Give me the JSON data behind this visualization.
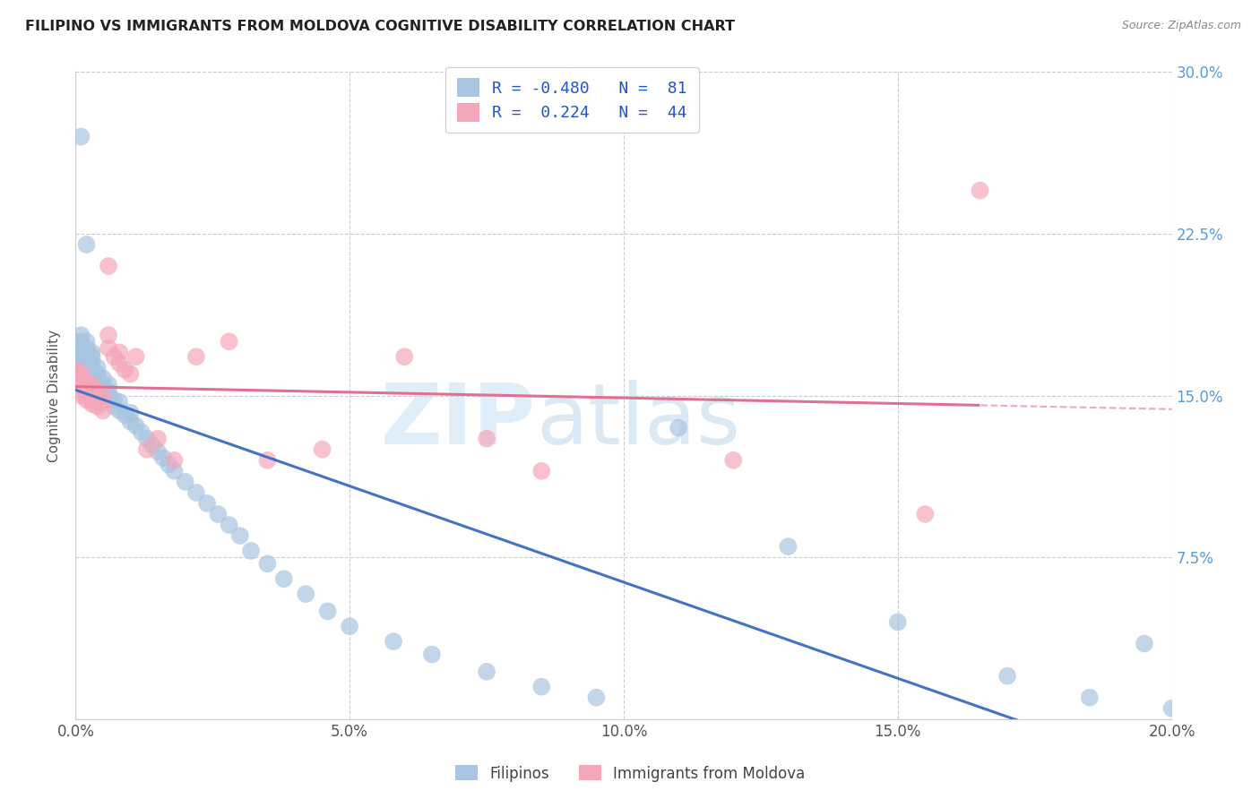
{
  "title": "FILIPINO VS IMMIGRANTS FROM MOLDOVA COGNITIVE DISABILITY CORRELATION CHART",
  "source": "Source: ZipAtlas.com",
  "ylabel": "Cognitive Disability",
  "xlim": [
    0,
    0.2
  ],
  "ylim": [
    0,
    0.3
  ],
  "xtick_vals": [
    0.0,
    0.05,
    0.1,
    0.15,
    0.2
  ],
  "ytick_vals": [
    0.0,
    0.075,
    0.15,
    0.225,
    0.3
  ],
  "ytick_labels": [
    "",
    "7.5%",
    "15.0%",
    "22.5%",
    "30.0%"
  ],
  "xtick_labels": [
    "0.0%",
    "5.0%",
    "10.0%",
    "15.0%",
    "20.0%"
  ],
  "filipino_R": -0.48,
  "filipino_N": 81,
  "moldova_R": 0.224,
  "moldova_N": 44,
  "blue_color": "#a8c4e0",
  "blue_line_color": "#4472c4",
  "pink_color": "#f4a7b9",
  "pink_line_color": "#e07090",
  "legend_labels": [
    "Filipinos",
    "Immigrants from Moldova"
  ],
  "watermark_zip": "ZIP",
  "watermark_atlas": "atlas",
  "filipino_x": [
    0.0,
    0.0,
    0.0,
    0.0,
    0.001,
    0.001,
    0.001,
    0.001,
    0.001,
    0.001,
    0.001,
    0.001,
    0.001,
    0.002,
    0.002,
    0.002,
    0.002,
    0.002,
    0.002,
    0.002,
    0.002,
    0.002,
    0.003,
    0.003,
    0.003,
    0.003,
    0.003,
    0.003,
    0.003,
    0.004,
    0.004,
    0.004,
    0.004,
    0.004,
    0.005,
    0.005,
    0.005,
    0.005,
    0.006,
    0.006,
    0.006,
    0.006,
    0.007,
    0.007,
    0.008,
    0.008,
    0.009,
    0.01,
    0.01,
    0.011,
    0.012,
    0.013,
    0.014,
    0.015,
    0.016,
    0.017,
    0.018,
    0.02,
    0.022,
    0.024,
    0.026,
    0.028,
    0.03,
    0.032,
    0.035,
    0.038,
    0.042,
    0.046,
    0.05,
    0.058,
    0.065,
    0.075,
    0.085,
    0.095,
    0.11,
    0.13,
    0.15,
    0.17,
    0.185,
    0.195,
    0.2
  ],
  "filipino_y": [
    0.165,
    0.168,
    0.172,
    0.175,
    0.16,
    0.163,
    0.165,
    0.167,
    0.17,
    0.172,
    0.175,
    0.178,
    0.27,
    0.158,
    0.16,
    0.163,
    0.165,
    0.168,
    0.17,
    0.172,
    0.175,
    0.22,
    0.155,
    0.158,
    0.16,
    0.163,
    0.165,
    0.168,
    0.17,
    0.152,
    0.155,
    0.158,
    0.16,
    0.163,
    0.15,
    0.152,
    0.155,
    0.158,
    0.148,
    0.15,
    0.152,
    0.155,
    0.145,
    0.148,
    0.143,
    0.147,
    0.141,
    0.138,
    0.142,
    0.136,
    0.133,
    0.13,
    0.127,
    0.124,
    0.121,
    0.118,
    0.115,
    0.11,
    0.105,
    0.1,
    0.095,
    0.09,
    0.085,
    0.078,
    0.072,
    0.065,
    0.058,
    0.05,
    0.043,
    0.036,
    0.03,
    0.022,
    0.015,
    0.01,
    0.135,
    0.08,
    0.045,
    0.02,
    0.01,
    0.035,
    0.005
  ],
  "moldova_x": [
    0.0,
    0.0,
    0.0,
    0.001,
    0.001,
    0.001,
    0.001,
    0.001,
    0.002,
    0.002,
    0.002,
    0.002,
    0.003,
    0.003,
    0.003,
    0.003,
    0.004,
    0.004,
    0.004,
    0.005,
    0.005,
    0.005,
    0.006,
    0.006,
    0.006,
    0.007,
    0.008,
    0.008,
    0.009,
    0.01,
    0.011,
    0.013,
    0.015,
    0.018,
    0.022,
    0.028,
    0.035,
    0.045,
    0.06,
    0.075,
    0.085,
    0.12,
    0.155,
    0.165
  ],
  "moldova_y": [
    0.155,
    0.158,
    0.162,
    0.15,
    0.152,
    0.155,
    0.158,
    0.16,
    0.148,
    0.15,
    0.153,
    0.156,
    0.146,
    0.148,
    0.152,
    0.155,
    0.145,
    0.148,
    0.152,
    0.143,
    0.147,
    0.15,
    0.172,
    0.178,
    0.21,
    0.168,
    0.165,
    0.17,
    0.162,
    0.16,
    0.168,
    0.125,
    0.13,
    0.12,
    0.168,
    0.175,
    0.12,
    0.125,
    0.168,
    0.13,
    0.115,
    0.12,
    0.095,
    0.245
  ]
}
